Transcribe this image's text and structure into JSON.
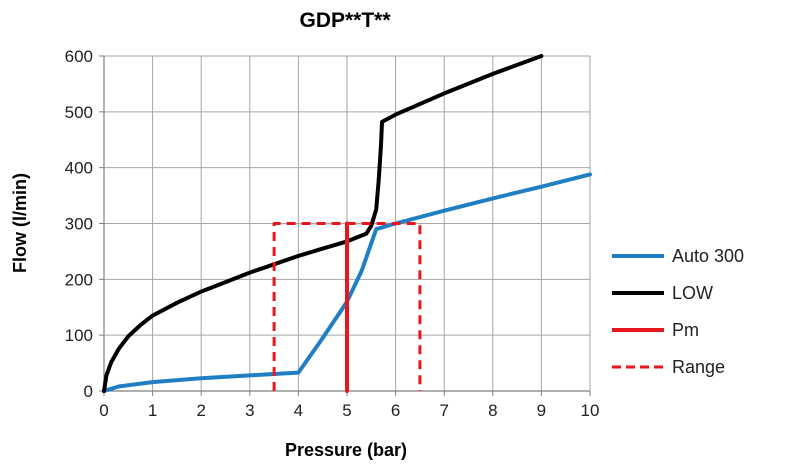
{
  "chart_data": {
    "type": "line",
    "title": "GDP**T**",
    "xlabel": "Pressure (bar)",
    "ylabel": "Flow (l/min)",
    "xlim": [
      0,
      10
    ],
    "ylim": [
      0,
      600
    ],
    "x_ticks": [
      0,
      1,
      2,
      3,
      4,
      5,
      6,
      7,
      8,
      9,
      10
    ],
    "y_ticks": [
      0,
      100,
      200,
      300,
      400,
      500,
      600
    ],
    "grid": true,
    "legend_position": "right",
    "series": [
      {
        "name": "Auto 300",
        "color": "#1f7ec4",
        "style": "solid",
        "points": [
          [
            0,
            0
          ],
          [
            0.3,
            8
          ],
          [
            1,
            16
          ],
          [
            2,
            23
          ],
          [
            3,
            28
          ],
          [
            4,
            33
          ],
          [
            4.5,
            95
          ],
          [
            5,
            160
          ],
          [
            5.3,
            215
          ],
          [
            5.6,
            290
          ],
          [
            6,
            300
          ],
          [
            7,
            323
          ],
          [
            8,
            345
          ],
          [
            9,
            366
          ],
          [
            10,
            388
          ]
        ]
      },
      {
        "name": "LOW",
        "color": "#000000",
        "style": "solid",
        "points": [
          [
            0,
            0
          ],
          [
            0.05,
            28
          ],
          [
            0.15,
            52
          ],
          [
            0.3,
            75
          ],
          [
            0.5,
            98
          ],
          [
            0.75,
            118
          ],
          [
            1,
            135
          ],
          [
            1.5,
            158
          ],
          [
            2,
            178
          ],
          [
            2.5,
            195
          ],
          [
            3,
            212
          ],
          [
            3.5,
            227
          ],
          [
            4,
            242
          ],
          [
            4.5,
            255
          ],
          [
            5,
            268
          ],
          [
            5.4,
            282
          ],
          [
            5.5,
            296
          ],
          [
            5.6,
            325
          ],
          [
            5.65,
            375
          ],
          [
            5.7,
            440
          ],
          [
            5.72,
            482
          ],
          [
            6,
            495
          ],
          [
            7,
            533
          ],
          [
            8,
            568
          ],
          [
            9,
            600
          ]
        ]
      },
      {
        "name": "Pm",
        "color": "#e8171d",
        "style": "solid",
        "points": [
          [
            5,
            0
          ],
          [
            5,
            300
          ]
        ]
      },
      {
        "name": "Range",
        "color": "#e8171d",
        "style": "dashed",
        "points": [
          [
            3.5,
            0
          ],
          [
            3.5,
            300
          ],
          [
            6.5,
            300
          ],
          [
            6.5,
            0
          ]
        ]
      }
    ]
  }
}
